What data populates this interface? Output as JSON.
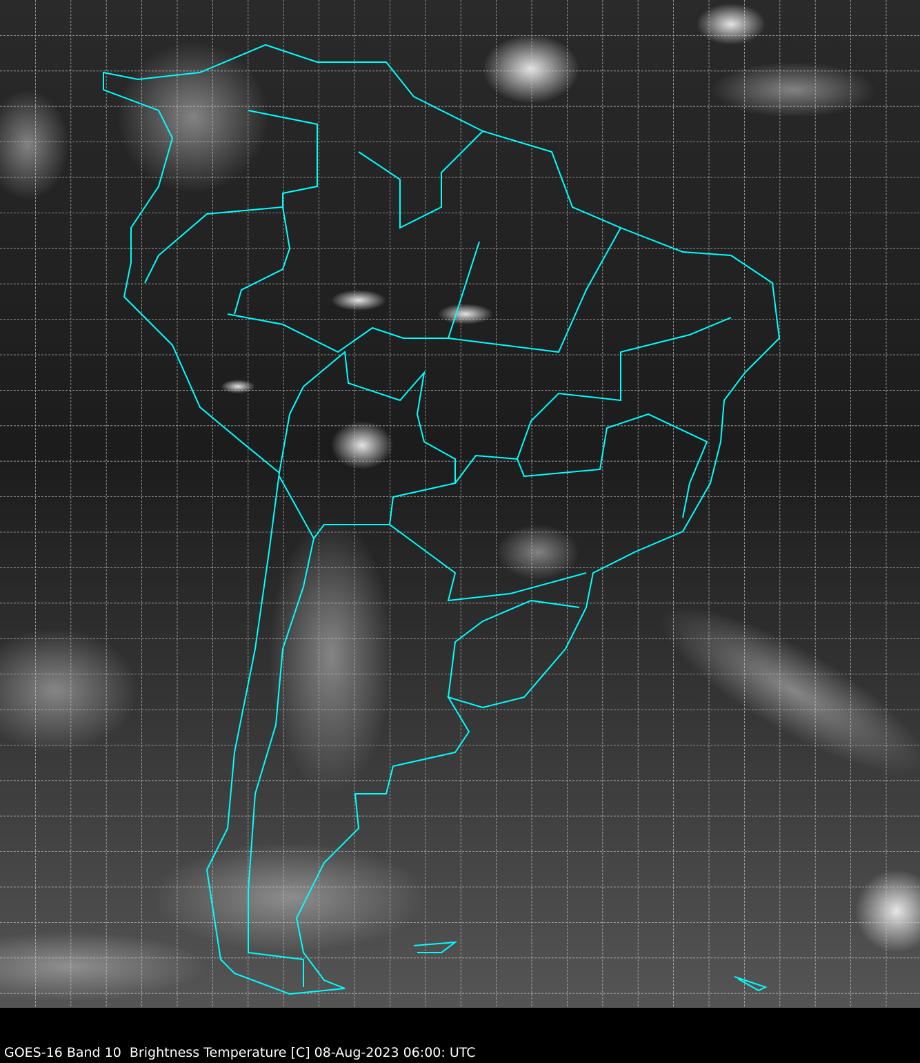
{
  "caption": "GOES-16 Band 10  Brightness Temperature [C] 08-Aug-2023 06:00: UTC",
  "colors": {
    "border_lines": "#00ffff",
    "grid_lines": "#d0d0d0",
    "background": "#000000"
  },
  "map": {
    "region": "South America",
    "product": "infrared brightness temperature, grayscale",
    "grid": true,
    "grid_style": "dashed"
  }
}
